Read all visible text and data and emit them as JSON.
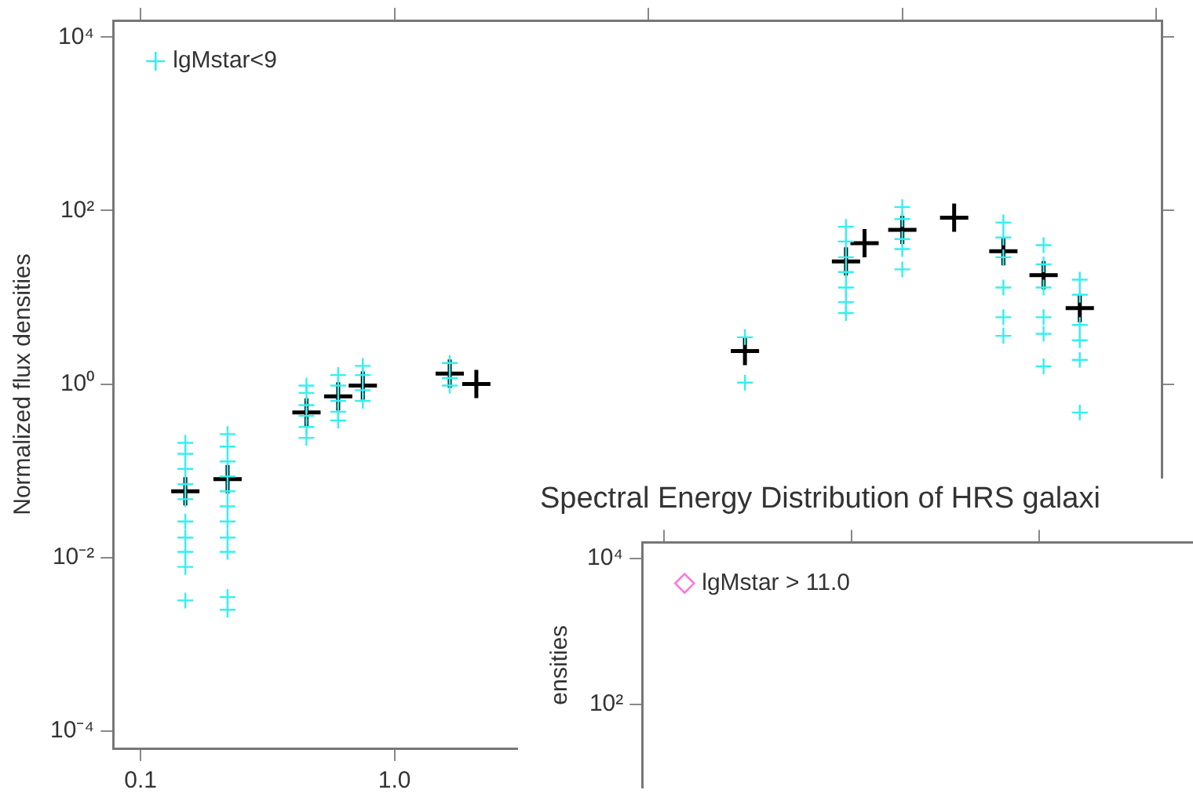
{
  "chart_data": [
    {
      "type": "scatter",
      "ylabel": "Normalized flux densities",
      "log": "xy",
      "marker": "cross",
      "legend": "top left",
      "xlim": [
        0.078,
        1050
      ],
      "ylim": [
        6.3e-05,
        15600
      ],
      "xticks": [
        {
          "value": 0.1,
          "label": "0.1"
        },
        {
          "value": 1,
          "label": "1.0"
        },
        {
          "value": 10,
          "label": null
        },
        {
          "value": 100,
          "label": null
        },
        {
          "value": 1000,
          "label": null
        }
      ],
      "yticks": [
        {
          "value": 0.0001,
          "label": "10⁻⁴"
        },
        {
          "value": 0.01,
          "label": "10⁻²"
        },
        {
          "value": 1,
          "label": "10⁰"
        },
        {
          "value": 100,
          "label": "10²"
        },
        {
          "value": 10000,
          "label": "10⁴"
        }
      ],
      "series": [
        {
          "name": "lgMstar<9",
          "color": "#33f0f0",
          "x": [
            0.15,
            0.15,
            0.15,
            0.15,
            0.15,
            0.15,
            0.15,
            0.15,
            0.15,
            0.15,
            0.22,
            0.22,
            0.22,
            0.22,
            0.22,
            0.22,
            0.22,
            0.22,
            0.22,
            0.22,
            0.22,
            0.45,
            0.45,
            0.45,
            0.45,
            0.45,
            0.45,
            0.6,
            0.6,
            0.6,
            0.6,
            0.6,
            0.75,
            0.75,
            0.75,
            0.75,
            1.65,
            1.65,
            1.65,
            24,
            24,
            60,
            60,
            60,
            60,
            60,
            60,
            60,
            100,
            100,
            100,
            100,
            100,
            250,
            250,
            250,
            250,
            250,
            250,
            360,
            360,
            360,
            360,
            360,
            360,
            500,
            500,
            500,
            500,
            500,
            500
          ],
          "values": [
            0.21,
            0.157,
            0.105,
            0.07,
            0.047,
            0.026,
            0.017,
            0.0116,
            0.0078,
            0.0032,
            0.265,
            0.19,
            0.128,
            0.086,
            0.058,
            0.039,
            0.026,
            0.017,
            0.0116,
            0.0035,
            0.0025,
            0.96,
            0.79,
            0.57,
            0.43,
            0.32,
            0.24,
            1.27,
            0.96,
            0.64,
            0.48,
            0.38,
            1.62,
            1.27,
            0.85,
            0.64,
            1.75,
            1.17,
            0.96,
            3.47,
            1.04,
            65,
            44,
            29,
            19.6,
            13,
            8.8,
            6.6,
            110,
            80,
            47,
            36,
            21,
            73,
            49,
            29,
            13,
            5.9,
            3.6,
            40,
            24,
            13,
            5.9,
            3.8,
            1.6,
            16,
            10.7,
            4.8,
            3.2,
            1.9,
            0.47
          ]
        },
        {
          "color": "#000000",
          "x": [
            0.15,
            0.22,
            0.45,
            0.6,
            0.75,
            1.65,
            2.1,
            24,
            60,
            71,
            100,
            160,
            250,
            360,
            500
          ],
          "values": [
            0.058,
            0.08,
            0.47,
            0.72,
            0.96,
            1.32,
            1.0,
            2.4,
            26,
            42,
            60,
            83,
            34,
            18,
            7.5
          ]
        }
      ]
    },
    {
      "type": "other",
      "title": "Spectral Energy Distribution of HRS galaxi",
      "ylabel": "ensities",
      "legend": "top left",
      "annotations": [
        "10⁴",
        "10²"
      ],
      "series": [
        {
          "name": "lgMstar > 11.0",
          "color": "#ff77dd"
        }
      ]
    }
  ]
}
